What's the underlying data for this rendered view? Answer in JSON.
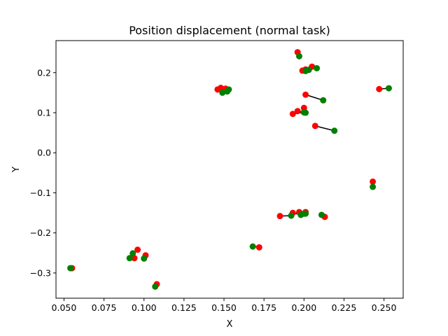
{
  "chart_data": {
    "type": "scatter",
    "title": "Position displacement (normal task)",
    "xlabel": "X",
    "ylabel": "Y",
    "xlim": [
      0.045,
      0.262
    ],
    "ylim": [
      -0.363,
      0.28
    ],
    "x_ticks": [
      0.05,
      0.075,
      0.1,
      0.125,
      0.15,
      0.175,
      0.2,
      0.225,
      0.25
    ],
    "x_tick_labels": [
      "0.050",
      "0.075",
      "0.100",
      "0.125",
      "0.150",
      "0.175",
      "0.200",
      "0.225",
      "0.250"
    ],
    "y_ticks": [
      -0.3,
      -0.2,
      -0.1,
      0.0,
      0.1,
      0.2
    ],
    "y_tick_labels": [
      "−0.3",
      "−0.2",
      "−0.1",
      "0.0",
      "0.1",
      "0.2"
    ],
    "grid": false,
    "legend": null,
    "colors": {
      "red": "#ff0000",
      "green": "#008000",
      "line": "#000000"
    },
    "series": [
      {
        "color": "red",
        "points": [
          [
            0.196,
            0.251
          ],
          [
            0.199,
            0.205
          ],
          [
            0.201,
            0.208
          ],
          [
            0.205,
            0.215
          ],
          [
            0.146,
            0.158
          ],
          [
            0.148,
            0.162
          ],
          [
            0.151,
            0.16
          ],
          [
            0.201,
            0.145
          ],
          [
            0.193,
            0.097
          ],
          [
            0.196,
            0.104
          ],
          [
            0.2,
            0.112
          ],
          [
            0.207,
            0.067
          ],
          [
            0.247,
            0.159
          ],
          [
            0.243,
            -0.072
          ],
          [
            0.185,
            -0.158
          ],
          [
            0.193,
            -0.15
          ],
          [
            0.197,
            -0.148
          ],
          [
            0.201,
            -0.148
          ],
          [
            0.213,
            -0.16
          ],
          [
            0.172,
            -0.236
          ],
          [
            0.096,
            -0.242
          ],
          [
            0.101,
            -0.256
          ],
          [
            0.094,
            -0.263
          ],
          [
            0.108,
            -0.328
          ],
          [
            0.055,
            -0.288
          ]
        ]
      },
      {
        "color": "green",
        "points": [
          [
            0.197,
            0.241
          ],
          [
            0.201,
            0.204
          ],
          [
            0.203,
            0.207
          ],
          [
            0.208,
            0.211
          ],
          [
            0.149,
            0.15
          ],
          [
            0.152,
            0.153
          ],
          [
            0.153,
            0.158
          ],
          [
            0.212,
            0.131
          ],
          [
            0.2,
            0.101
          ],
          [
            0.201,
            0.1
          ],
          [
            0.2,
            0.101
          ],
          [
            0.219,
            0.055
          ],
          [
            0.253,
            0.161
          ],
          [
            0.243,
            -0.085
          ],
          [
            0.192,
            -0.157
          ],
          [
            0.198,
            -0.155
          ],
          [
            0.2,
            -0.152
          ],
          [
            0.201,
            -0.152
          ],
          [
            0.211,
            -0.155
          ],
          [
            0.168,
            -0.234
          ],
          [
            0.093,
            -0.251
          ],
          [
            0.1,
            -0.264
          ],
          [
            0.091,
            -0.263
          ],
          [
            0.107,
            -0.334
          ],
          [
            0.054,
            -0.288
          ]
        ]
      }
    ]
  }
}
